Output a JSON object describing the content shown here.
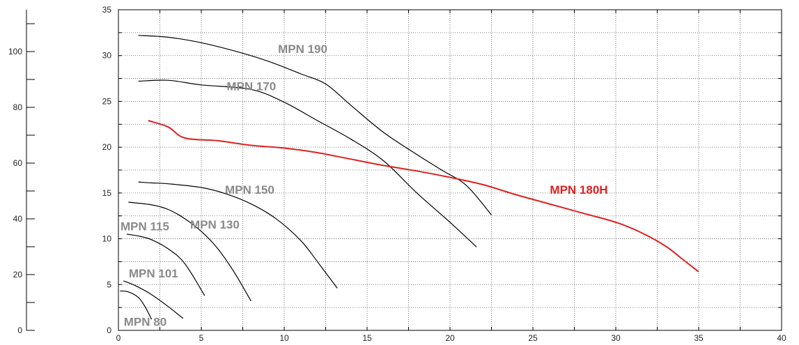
{
  "chart_data": {
    "type": "line",
    "title": "",
    "xlabel": "",
    "ylabel": "",
    "xlim": [
      0,
      40
    ],
    "ylim": [
      0,
      35
    ],
    "secondary_ylim": [
      0,
      115
    ],
    "grid": true,
    "x_ticks": [
      "0",
      "5",
      "10",
      "15",
      "20",
      "25",
      "30",
      "35",
      "40"
    ],
    "y_ticks": [
      "0",
      "5",
      "10",
      "15",
      "20",
      "25",
      "30",
      "35"
    ],
    "secondary_y_ticks": [
      "0",
      "20",
      "40",
      "60",
      "80",
      "100"
    ],
    "series": [
      {
        "name": "MPN 190",
        "color": "#000000",
        "label_color": "#8a8a8a",
        "label_at": [
          9.5,
          30.3
        ],
        "x": [
          1.2,
          3,
          5,
          7,
          9,
          11,
          12.5,
          14,
          16,
          18,
          19.5,
          21,
          22.5
        ],
        "y": [
          32.2,
          32.0,
          31.4,
          30.5,
          29.4,
          28.0,
          26.9,
          24.6,
          21.6,
          19.2,
          17.5,
          15.8,
          12.6
        ]
      },
      {
        "name": "MPN 170",
        "color": "#000000",
        "label_color": "#8a8a8a",
        "label_at": [
          6.4,
          26.2
        ],
        "x": [
          1.2,
          3,
          5,
          8,
          10,
          12,
          14,
          16,
          18,
          20,
          21.6
        ],
        "y": [
          27.2,
          27.3,
          26.8,
          26.3,
          24.9,
          22.9,
          20.9,
          18.5,
          15.0,
          11.8,
          9.1
        ]
      },
      {
        "name": "MPN 180H",
        "color": "#e02020",
        "label_color": "#e02020",
        "label_at": [
          25.9,
          14.9
        ],
        "x": [
          1.8,
          3,
          4,
          6,
          8,
          10,
          12,
          14,
          16,
          18,
          20,
          22,
          24,
          26,
          28,
          30,
          31.5,
          33,
          34,
          35
        ],
        "y": [
          22.9,
          22.2,
          21.0,
          20.7,
          20.2,
          19.9,
          19.4,
          18.7,
          18.0,
          17.4,
          16.7,
          15.9,
          14.8,
          13.8,
          12.8,
          11.8,
          10.7,
          9.2,
          7.8,
          6.4
        ]
      },
      {
        "name": "MPN 150",
        "color": "#000000",
        "label_color": "#8a8a8a",
        "label_at": [
          6.3,
          14.9
        ],
        "x": [
          1.2,
          2,
          3,
          5,
          6.5,
          8,
          9.5,
          11,
          12,
          13.2
        ],
        "y": [
          16.2,
          16.1,
          16.0,
          15.6,
          14.9,
          13.8,
          12.2,
          9.8,
          7.5,
          4.6
        ]
      },
      {
        "name": "MPN 130",
        "color": "#000000",
        "label_color": "#8a8a8a",
        "label_at": [
          4.2,
          11.1
        ],
        "x": [
          0.6,
          2,
          3,
          4,
          5,
          6,
          7,
          8
        ],
        "y": [
          14.0,
          13.7,
          13.2,
          12.2,
          10.8,
          8.9,
          6.3,
          3.2
        ]
      },
      {
        "name": "MPN 115",
        "color": "#000000",
        "label_color": "#8a8a8a",
        "label_at": [
          0,
          10.9
        ],
        "x": [
          0.5,
          1.2,
          2,
          3,
          4,
          5.2
        ],
        "y": [
          10.5,
          10.3,
          9.9,
          8.9,
          7.3,
          3.8
        ]
      },
      {
        "name": "MPN 101",
        "color": "#000000",
        "label_color": "#8a8a8a",
        "label_at": [
          0.5,
          5.8
        ],
        "x": [
          0.3,
          1,
          2,
          3,
          3.9
        ],
        "y": [
          5.4,
          4.9,
          3.9,
          2.6,
          1.3
        ]
      },
      {
        "name": "MPN 80",
        "color": "#000000",
        "label_color": "#8a8a8a",
        "label_at": [
          0.2,
          0.5
        ],
        "x": [
          0.1,
          0.6,
          1.2,
          1.6,
          2.0
        ],
        "y": [
          4.3,
          4.2,
          3.6,
          2.6,
          1.2
        ]
      }
    ]
  }
}
